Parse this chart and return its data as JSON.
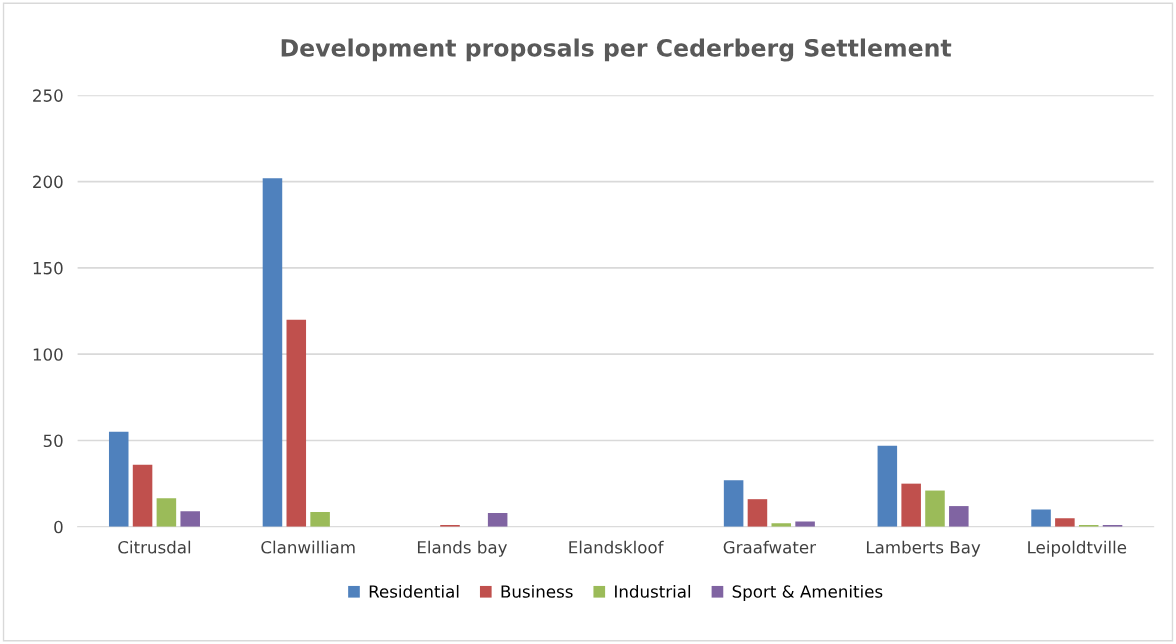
{
  "chart_data": {
    "type": "bar",
    "title": "Development proposals per Cederberg Settlement",
    "categories": [
      "Citrusdal",
      "Clanwilliam",
      "Elands bay",
      "Elandskloof",
      "Graafwater",
      "Lamberts Bay",
      "Leipoldtville"
    ],
    "series": [
      {
        "name": "Residential",
        "color": "#4f81bd",
        "values": [
          55,
          202,
          0,
          0,
          27,
          47,
          10
        ]
      },
      {
        "name": "Business",
        "color": "#c0504d",
        "values": [
          36,
          120,
          1,
          0,
          16,
          25,
          5
        ]
      },
      {
        "name": "Industrial",
        "color": "#9bbb59",
        "values": [
          16.5,
          8.5,
          0,
          0,
          2,
          21,
          1
        ]
      },
      {
        "name": "Sport & Amenities",
        "color": "#8064a2",
        "values": [
          9,
          0,
          8,
          0,
          3,
          12,
          1
        ]
      }
    ],
    "ylim": [
      0,
      250
    ],
    "yticks": [
      0,
      50,
      100,
      150,
      200,
      250
    ],
    "grid": "y",
    "legend": "bottom"
  }
}
